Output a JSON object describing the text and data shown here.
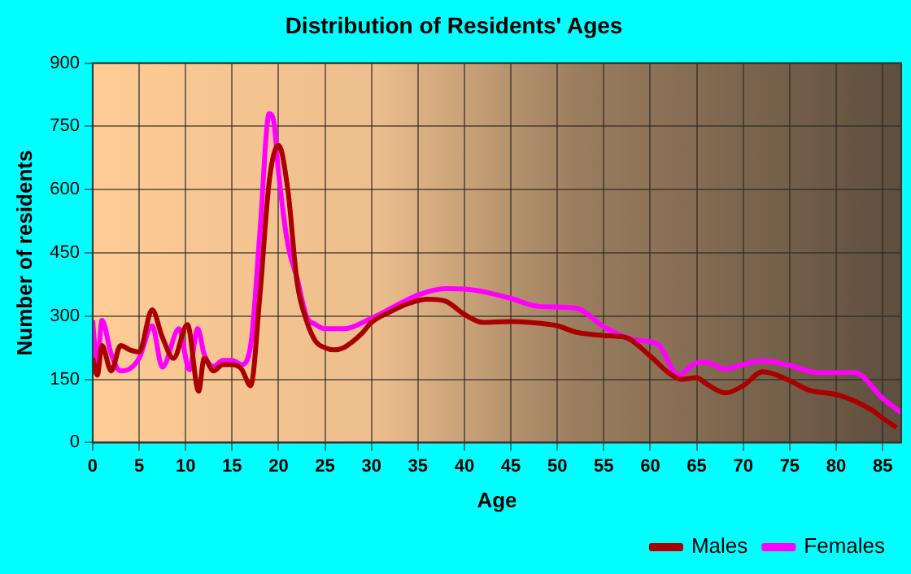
{
  "chart_data": {
    "type": "line",
    "title": "Distribution of Residents' Ages",
    "xlabel": "Age",
    "ylabel": "Number of residents",
    "xlim": [
      0,
      87
    ],
    "xticks": [
      0,
      5,
      10,
      15,
      20,
      25,
      30,
      35,
      40,
      45,
      50,
      55,
      60,
      65,
      70,
      75,
      80,
      85
    ],
    "ylim": [
      0,
      900
    ],
    "yticks": [
      0,
      150,
      300,
      450,
      600,
      750,
      900
    ],
    "grid": true,
    "legend": "bottom",
    "marker": "none",
    "line_style": "solid",
    "series": [
      {
        "name": "Males",
        "color": "#aa0000",
        "x": [
          0,
          0.5,
          1,
          2,
          3,
          4,
          5,
          6.4,
          7.5,
          8.7,
          10.2,
          11.4,
          12,
          13,
          14,
          15,
          16,
          17,
          18,
          19,
          20,
          21,
          22,
          23,
          24,
          25,
          26,
          27,
          28,
          29,
          30,
          32,
          34,
          36,
          38,
          40,
          42,
          45,
          47,
          50,
          52,
          55,
          57.4,
          60,
          62,
          63.4,
          65,
          66,
          68.1,
          70,
          72.1,
          75,
          77,
          80,
          81.3,
          84,
          85,
          86.5
        ],
        "values": [
          200,
          160,
          230,
          170,
          230,
          220,
          215,
          315,
          250,
          200,
          280,
          122,
          200,
          170,
          185,
          185,
          175,
          135,
          350,
          620,
          705,
          600,
          380,
          290,
          240,
          225,
          220,
          225,
          240,
          260,
          285,
          310,
          330,
          340,
          335,
          304,
          285,
          287,
          285,
          277,
          262,
          254,
          249,
          205,
          165,
          150,
          154,
          140,
          118,
          135,
          168,
          147,
          125,
          114,
          105,
          75,
          58,
          36
        ]
      },
      {
        "name": "Females",
        "color": "#ff00ff",
        "x": [
          0,
          0.5,
          1,
          2,
          3,
          4,
          5,
          6.4,
          7.5,
          9.3,
          10.4,
          11.3,
          12,
          13,
          14,
          15,
          16,
          17,
          18,
          19,
          19.5,
          20,
          21,
          22,
          23,
          24,
          25,
          27,
          30,
          35,
          38,
          40,
          42,
          45,
          48,
          52,
          55,
          58,
          60,
          61,
          63,
          65,
          66,
          68,
          70,
          72,
          75,
          78,
          82,
          85,
          87
        ],
        "values": [
          290,
          180,
          290,
          210,
          170,
          175,
          200,
          277,
          179,
          270,
          173,
          270,
          210,
          180,
          195,
          195,
          185,
          230,
          500,
          780,
          760,
          640,
          470,
          390,
          300,
          280,
          270,
          270,
          295,
          350,
          365,
          364,
          358,
          342,
          323,
          319,
          275,
          245,
          239,
          230,
          160,
          189,
          190,
          175,
          185,
          194,
          183,
          166,
          166,
          105,
          71
        ]
      }
    ]
  }
}
